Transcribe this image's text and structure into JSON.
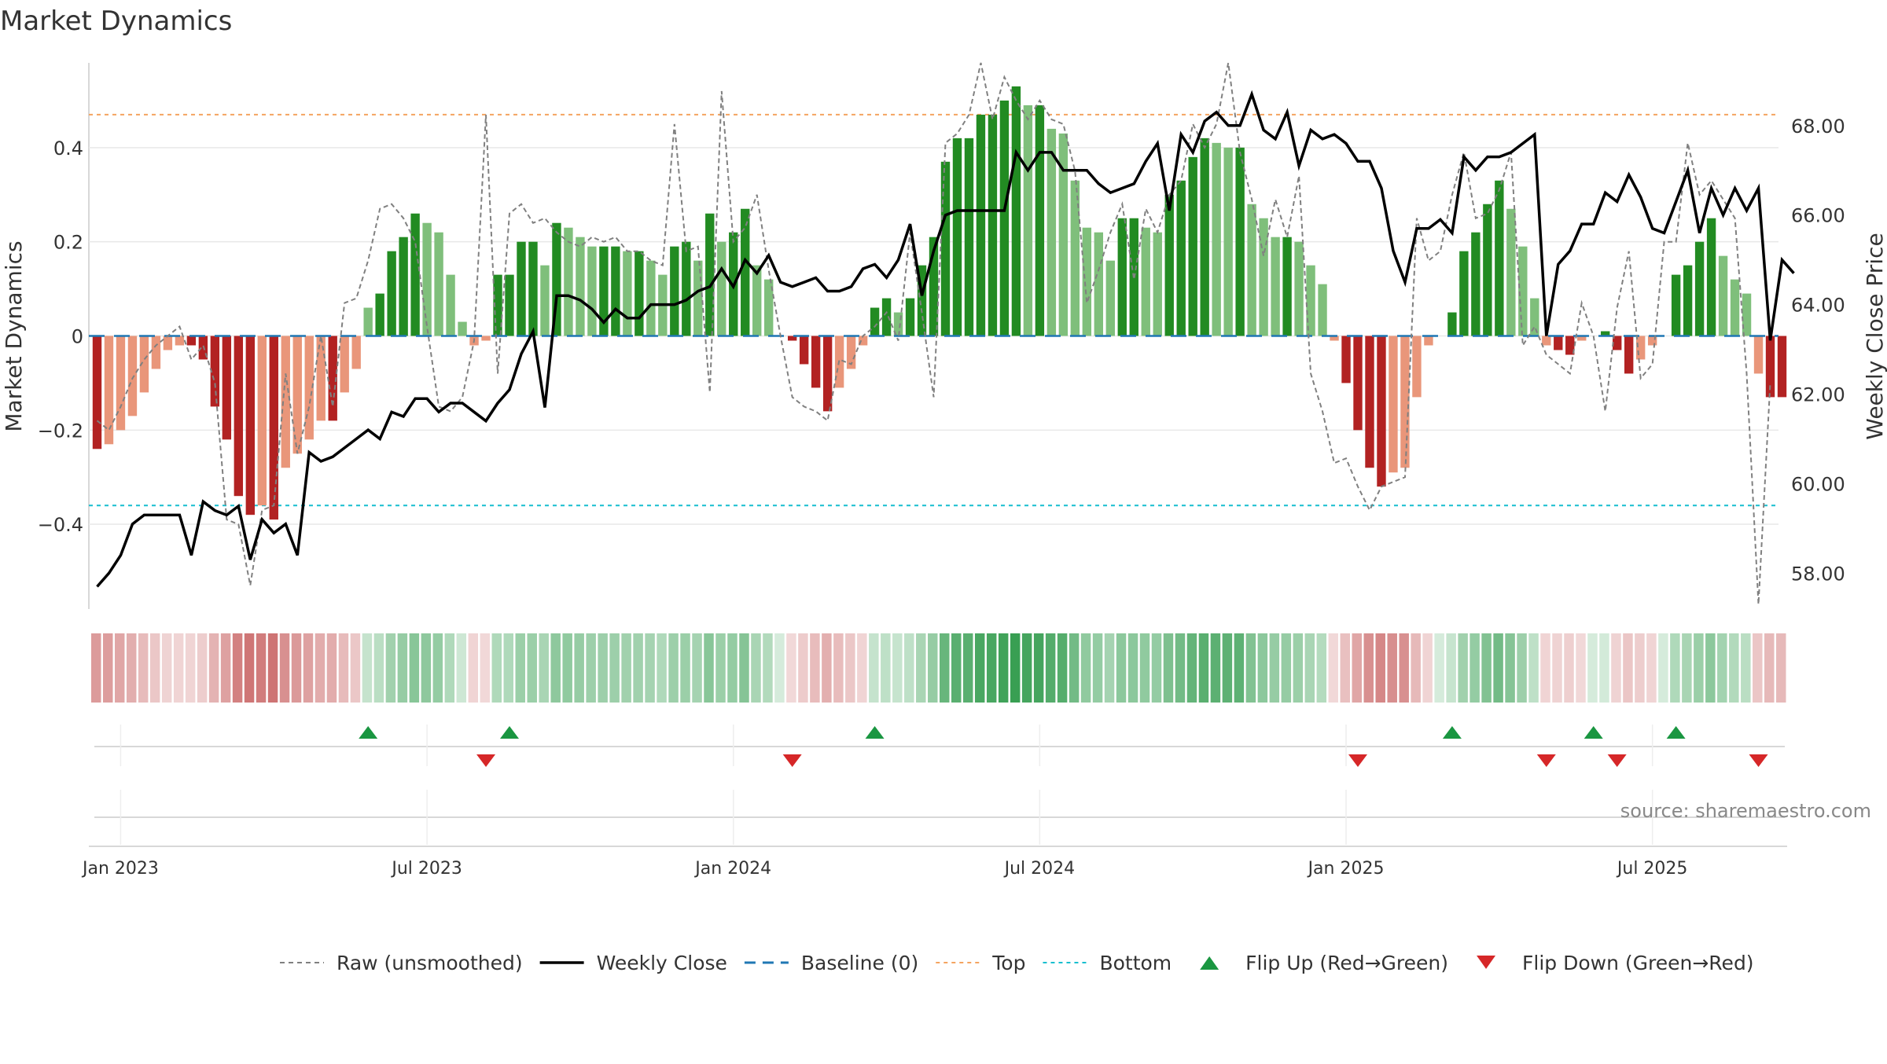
{
  "title": "Market Dynamics",
  "source": "source: sharemaestro.com",
  "colors": {
    "strong_green": "#228b22",
    "light_green": "#7fbf7b",
    "strong_red": "#b22222",
    "light_red": "#e9967a",
    "raw": "#808080",
    "close": "#000000",
    "baseline": "#1f77b4",
    "top": "#f4a460",
    "bottom": "#17becf",
    "flip_up": "#1a9641",
    "flip_down": "#d62728"
  },
  "chart_data": {
    "type": "bar",
    "title": "Market Dynamics",
    "ylabel_left": "Market Dynamics",
    "ylabel_right": "Weekly Close Price",
    "ylim_left": [
      -0.58,
      0.58
    ],
    "ylim_right": [
      57.2,
      69.4
    ],
    "left_ticks": [
      -0.4,
      -0.2,
      0,
      0.2,
      0.4
    ],
    "left_tick_labels": [
      "−0.4",
      "−0.2",
      "0",
      "0.2",
      "0.4"
    ],
    "right_ticks": [
      58,
      60,
      62,
      64,
      66,
      68
    ],
    "right_tick_labels": [
      "58.00",
      "60.00",
      "62.00",
      "64.00",
      "66.00",
      "68.00"
    ],
    "x_ticks": [
      "Jan 2023",
      "Jul 2023",
      "Jan 2024",
      "Jul 2024",
      "Jan 2025",
      "Jul 2025"
    ],
    "x_tick_weeks": [
      2,
      28,
      54,
      80,
      106,
      132
    ],
    "top_level": 0.47,
    "bottom_level": -0.36,
    "grid": true,
    "legend_position": "bottom-center",
    "series": [
      {
        "name": "Market Dynamics",
        "kind": "bar",
        "values": [
          -0.24,
          -0.23,
          -0.2,
          -0.17,
          -0.12,
          -0.07,
          -0.03,
          -0.02,
          -0.02,
          -0.05,
          -0.15,
          -0.22,
          -0.34,
          -0.38,
          -0.36,
          -0.39,
          -0.28,
          -0.25,
          -0.22,
          -0.18,
          -0.18,
          -0.12,
          -0.07,
          0.06,
          0.09,
          0.18,
          0.21,
          0.26,
          0.24,
          0.22,
          0.13,
          0.03,
          -0.02,
          -0.01,
          0.13,
          0.13,
          0.2,
          0.2,
          0.15,
          0.24,
          0.23,
          0.21,
          0.19,
          0.19,
          0.19,
          0.18,
          0.18,
          0.16,
          0.13,
          0.19,
          0.2,
          0.16,
          0.26,
          0.2,
          0.22,
          0.27,
          0.15,
          0.12,
          0.0,
          -0.01,
          -0.06,
          -0.11,
          -0.16,
          -0.11,
          -0.07,
          -0.02,
          0.06,
          0.08,
          0.05,
          0.08,
          0.15,
          0.21,
          0.37,
          0.42,
          0.42,
          0.47,
          0.47,
          0.5,
          0.53,
          0.49,
          0.49,
          0.44,
          0.43,
          0.33,
          0.23,
          0.22,
          0.16,
          0.25,
          0.25,
          0.23,
          0.22,
          0.3,
          0.33,
          0.38,
          0.42,
          0.41,
          0.4,
          0.4,
          0.28,
          0.25,
          0.21,
          0.21,
          0.2,
          0.15,
          0.11,
          -0.01,
          -0.1,
          -0.2,
          -0.28,
          -0.32,
          -0.29,
          -0.28,
          -0.13,
          -0.02,
          0.0,
          0.05,
          0.18,
          0.22,
          0.28,
          0.33,
          0.27,
          0.19,
          0.08,
          -0.02,
          -0.03,
          -0.04,
          -0.01,
          0.0,
          0.01,
          -0.03,
          -0.08,
          -0.05,
          -0.02,
          0.0,
          0.13,
          0.15,
          0.2,
          0.25,
          0.17,
          0.12,
          0.09,
          -0.08,
          -0.13,
          -0.13
        ]
      },
      {
        "name": "Raw (unsmoothed)",
        "kind": "line",
        "values": [
          -0.18,
          -0.2,
          -0.15,
          -0.09,
          -0.05,
          -0.02,
          0.0,
          0.02,
          -0.05,
          -0.02,
          -0.1,
          -0.39,
          -0.4,
          -0.53,
          -0.37,
          -0.36,
          -0.08,
          -0.25,
          -0.15,
          0.0,
          -0.15,
          0.07,
          0.08,
          0.16,
          0.27,
          0.28,
          0.25,
          0.2,
          0.02,
          -0.15,
          -0.16,
          -0.13,
          -0.01,
          0.47,
          -0.08,
          0.26,
          0.28,
          0.24,
          0.25,
          0.22,
          0.2,
          0.19,
          0.21,
          0.2,
          0.21,
          0.18,
          0.18,
          0.16,
          0.15,
          0.45,
          0.18,
          0.19,
          -0.12,
          0.52,
          0.2,
          0.23,
          0.3,
          0.14,
          0.0,
          -0.13,
          -0.15,
          -0.16,
          -0.18,
          -0.05,
          -0.06,
          0.0,
          0.02,
          0.05,
          -0.01,
          0.22,
          0.05,
          -0.13,
          0.41,
          0.43,
          0.47,
          0.58,
          0.46,
          0.55,
          0.5,
          0.46,
          0.5,
          0.46,
          0.45,
          0.35,
          0.07,
          0.14,
          0.22,
          0.28,
          0.12,
          0.27,
          0.22,
          0.3,
          0.33,
          0.45,
          0.4,
          0.45,
          0.58,
          0.39,
          0.29,
          0.17,
          0.29,
          0.21,
          0.34,
          -0.08,
          -0.16,
          -0.27,
          -0.26,
          -0.32,
          -0.37,
          -0.32,
          -0.31,
          -0.3,
          0.25,
          0.16,
          0.18,
          0.3,
          0.39,
          0.25,
          0.26,
          0.31,
          0.39,
          -0.02,
          0.02,
          -0.04,
          -0.06,
          -0.08,
          0.07,
          0.0,
          -0.16,
          0.06,
          0.18,
          -0.09,
          -0.06,
          0.2,
          0.2,
          0.41,
          0.3,
          0.33,
          0.29,
          0.25,
          -0.08,
          -0.57,
          -0.1
        ]
      },
      {
        "name": "Weekly Close",
        "kind": "line",
        "axis": "right",
        "values": [
          57.7,
          58.0,
          58.4,
          59.1,
          59.3,
          59.3,
          59.3,
          59.3,
          58.4,
          59.6,
          59.4,
          59.3,
          59.5,
          58.3,
          59.2,
          58.9,
          59.1,
          58.4,
          60.7,
          60.5,
          60.6,
          60.8,
          61.0,
          61.2,
          61.0,
          61.6,
          61.5,
          61.9,
          61.9,
          61.6,
          61.8,
          61.8,
          61.6,
          61.4,
          61.8,
          62.1,
          62.9,
          63.4,
          61.7,
          64.2,
          64.2,
          64.1,
          63.9,
          63.6,
          63.9,
          63.7,
          63.7,
          64.0,
          64.0,
          64.0,
          64.1,
          64.3,
          64.4,
          64.8,
          64.4,
          65.0,
          64.7,
          65.1,
          64.5,
          64.4,
          64.5,
          64.6,
          64.3,
          64.3,
          64.4,
          64.8,
          64.9,
          64.6,
          65.0,
          65.8,
          64.2,
          65.2,
          66.0,
          66.1,
          66.1,
          66.1,
          66.1,
          66.1,
          67.4,
          67.0,
          67.4,
          67.4,
          67.0,
          67.0,
          67.0,
          66.7,
          66.5,
          66.6,
          66.7,
          67.2,
          67.6,
          66.1,
          67.8,
          67.4,
          68.1,
          68.3,
          68.0,
          68.0,
          68.7,
          67.9,
          67.7,
          68.3,
          67.1,
          67.9,
          67.7,
          67.8,
          67.6,
          67.2,
          67.2,
          66.6,
          65.2,
          64.5,
          65.7,
          65.7,
          65.9,
          65.6,
          67.3,
          67.0,
          67.3,
          67.3,
          67.4,
          67.6,
          67.8,
          63.3,
          64.9,
          65.2,
          65.8,
          65.8,
          66.5,
          66.3,
          66.9,
          66.4,
          65.7,
          65.6,
          66.3,
          67.0,
          65.6,
          66.6,
          66.0,
          66.6,
          66.1,
          66.6,
          63.2,
          65.0,
          64.7
        ]
      }
    ],
    "flip_up_weeks": [
      23,
      35,
      66,
      115,
      127,
      134
    ],
    "flip_down_weeks": [
      33,
      59,
      107,
      123,
      129,
      141
    ],
    "legend": [
      "Raw (unsmoothed)",
      "Weekly Close",
      "Baseline (0)",
      "Top",
      "Bottom",
      "Flip Up (Red→Green)",
      "Flip Down (Green→Red)"
    ]
  }
}
